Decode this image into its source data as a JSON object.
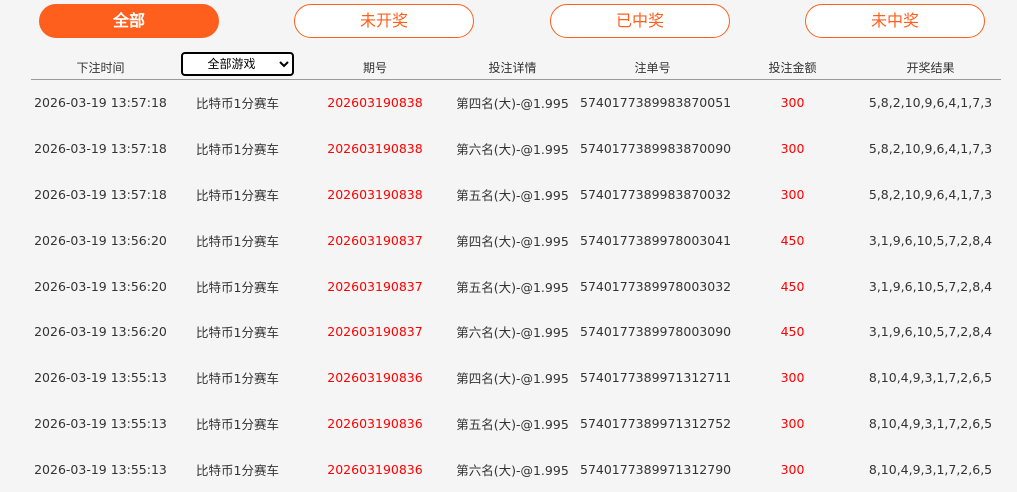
{
  "tabs": [
    {
      "label": "全部",
      "active": true
    },
    {
      "label": "未开奖"
    },
    {
      "label": "已中奖"
    },
    {
      "label": "未中奖"
    }
  ],
  "headers": {
    "time": "下注时间",
    "game_select": "全部游戏",
    "period": "期号",
    "details": "投注详情",
    "order": "注单号",
    "amount": "投注金额",
    "result": "开奖结果"
  },
  "colors": {
    "accent": "#ff5f1c",
    "highlight": "#ff0000"
  },
  "rows": [
    {
      "time": "2026-03-19 13:57:18",
      "game": "比特币1分赛车",
      "period": "202603190838",
      "details": "第四名(大)-@1.995",
      "order": "5740177389983870051",
      "amount": "300",
      "result": "5,8,2,10,9,6,4,1,7,3"
    },
    {
      "time": "2026-03-19 13:57:18",
      "game": "比特币1分赛车",
      "period": "202603190838",
      "details": "第六名(大)-@1.995",
      "order": "5740177389983870090",
      "amount": "300",
      "result": "5,8,2,10,9,6,4,1,7,3"
    },
    {
      "time": "2026-03-19 13:57:18",
      "game": "比特币1分赛车",
      "period": "202603190838",
      "details": "第五名(大)-@1.995",
      "order": "5740177389983870032",
      "amount": "300",
      "result": "5,8,2,10,9,6,4,1,7,3"
    },
    {
      "time": "2026-03-19 13:56:20",
      "game": "比特币1分赛车",
      "period": "202603190837",
      "details": "第四名(大)-@1.995",
      "order": "5740177389978003041",
      "amount": "450",
      "result": "3,1,9,6,10,5,7,2,8,4"
    },
    {
      "time": "2026-03-19 13:56:20",
      "game": "比特币1分赛车",
      "period": "202603190837",
      "details": "第五名(大)-@1.995",
      "order": "5740177389978003032",
      "amount": "450",
      "result": "3,1,9,6,10,5,7,2,8,4"
    },
    {
      "time": "2026-03-19 13:56:20",
      "game": "比特币1分赛车",
      "period": "202603190837",
      "details": "第六名(大)-@1.995",
      "order": "5740177389978003090",
      "amount": "450",
      "result": "3,1,9,6,10,5,7,2,8,4"
    },
    {
      "time": "2026-03-19 13:55:13",
      "game": "比特币1分赛车",
      "period": "202603190836",
      "details": "第四名(大)-@1.995",
      "order": "5740177389971312711",
      "amount": "300",
      "result": "8,10,4,9,3,1,7,2,6,5"
    },
    {
      "time": "2026-03-19 13:55:13",
      "game": "比特币1分赛车",
      "period": "202603190836",
      "details": "第五名(大)-@1.995",
      "order": "5740177389971312752",
      "amount": "300",
      "result": "8,10,4,9,3,1,7,2,6,5"
    },
    {
      "time": "2026-03-19 13:55:13",
      "game": "比特币1分赛车",
      "period": "202603190836",
      "details": "第六名(大)-@1.995",
      "order": "5740177389971312790",
      "amount": "300",
      "result": "8,10,4,9,3,1,7,2,6,5"
    }
  ]
}
